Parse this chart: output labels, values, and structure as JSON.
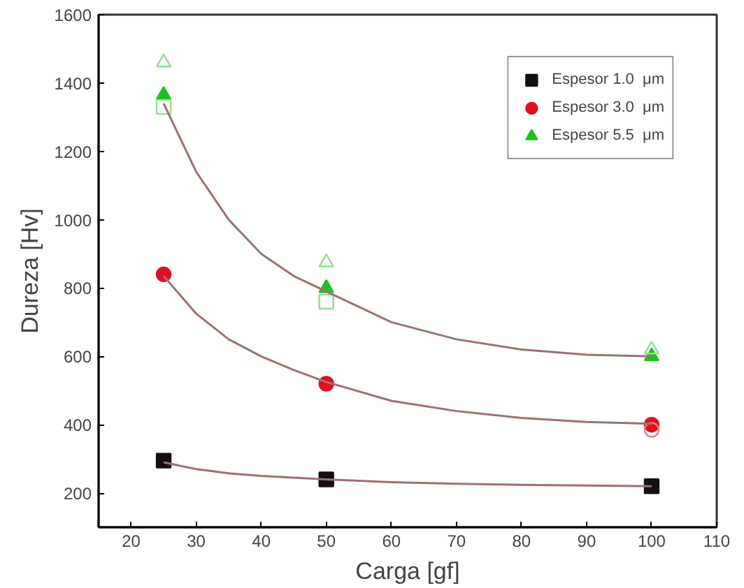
{
  "chart_data": {
    "type": "scatter",
    "xlabel": "Carga [gf]",
    "ylabel": "Dureza [Hv]",
    "x": [
      25,
      50,
      100
    ],
    "xlim": [
      15,
      110
    ],
    "xticks": [
      20,
      30,
      40,
      50,
      60,
      70,
      80,
      90,
      100,
      110
    ],
    "ylim": [
      100,
      1600
    ],
    "yticks": [
      200,
      400,
      600,
      800,
      1000,
      1200,
      1400,
      1600
    ],
    "grid": false,
    "legend": "top right",
    "series": [
      {
        "name": "Espesor 1.0  μm",
        "color": "#111111",
        "marker": "square",
        "values": [
          295,
          240,
          220
        ]
      },
      {
        "name": "Espesor 3.0  μm",
        "color": "#e01020",
        "marker": "circle",
        "values": [
          840,
          520,
          400
        ]
      },
      {
        "name": "Espesor 5.5  μm",
        "color": "#20c020",
        "marker": "triangle",
        "values": [
          1365,
          800,
          600
        ]
      },
      {
        "color": "#90e090",
        "marker": "triangle",
        "values": [
          1460,
          875,
          620
        ]
      },
      {
        "color": "#90e090",
        "marker": "square",
        "values": [
          1330,
          760,
          null
        ]
      },
      {
        "color": "#e08080",
        "marker": "circle",
        "values": [
          null,
          null,
          385
        ]
      },
      {
        "type": "line",
        "color": "#a07070",
        "x": [
          25,
          30,
          35,
          40,
          45,
          50,
          60,
          70,
          80,
          90,
          100
        ],
        "values": [
          1340,
          1140,
          1000,
          900,
          835,
          790,
          700,
          650,
          620,
          605,
          600
        ]
      },
      {
        "type": "line",
        "color": "#a07070",
        "x": [
          25,
          30,
          35,
          40,
          45,
          50,
          60,
          70,
          80,
          90,
          100
        ],
        "values": [
          835,
          725,
          650,
          600,
          560,
          525,
          470,
          440,
          420,
          408,
          403
        ]
      },
      {
        "type": "line",
        "color": "#a07070",
        "x": [
          25,
          30,
          35,
          40,
          45,
          50,
          60,
          70,
          80,
          90,
          100
        ],
        "values": [
          290,
          270,
          258,
          250,
          245,
          240,
          232,
          227,
          224,
          222,
          220
        ]
      }
    ]
  }
}
